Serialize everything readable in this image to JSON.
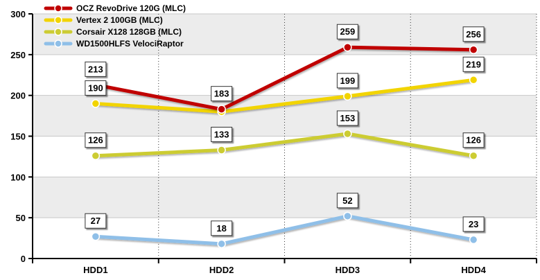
{
  "chart_data": {
    "type": "line",
    "categories": [
      "HDD1",
      "HDD2",
      "HDD3",
      "HDD4"
    ],
    "ylim": [
      0,
      300
    ],
    "yticks": [
      0,
      50,
      100,
      150,
      200,
      250,
      300
    ],
    "grid": true,
    "legend": "top-left",
    "title": "",
    "xlabel": "",
    "ylabel": "",
    "series": [
      {
        "name": "OCZ RevoDrive 120G (MLC)",
        "color": "#c00000",
        "values": [
          213,
          183,
          259,
          256
        ]
      },
      {
        "name": "Vertex 2 100GB (MLC)",
        "color": "#f2d400",
        "values": [
          190,
          180,
          199,
          219
        ]
      },
      {
        "name": "Corsair X128 128GB (MLC)",
        "color": "#cccc33",
        "values": [
          126,
          133,
          153,
          126
        ]
      },
      {
        "name": "WD1500HLFS VelociRaptor",
        "color": "#8fbfe8",
        "values": [
          27,
          18,
          52,
          23
        ]
      }
    ],
    "data_labels": [
      {
        "series": 0,
        "text": [
          "213",
          "183",
          "259",
          "256"
        ]
      },
      {
        "series": 1,
        "text": [
          "190",
          "",
          "199",
          "219"
        ]
      },
      {
        "series": 2,
        "text": [
          "126",
          "133",
          "153",
          "126"
        ]
      },
      {
        "series": 3,
        "text": [
          "27",
          "18",
          "52",
          "23"
        ]
      }
    ]
  }
}
